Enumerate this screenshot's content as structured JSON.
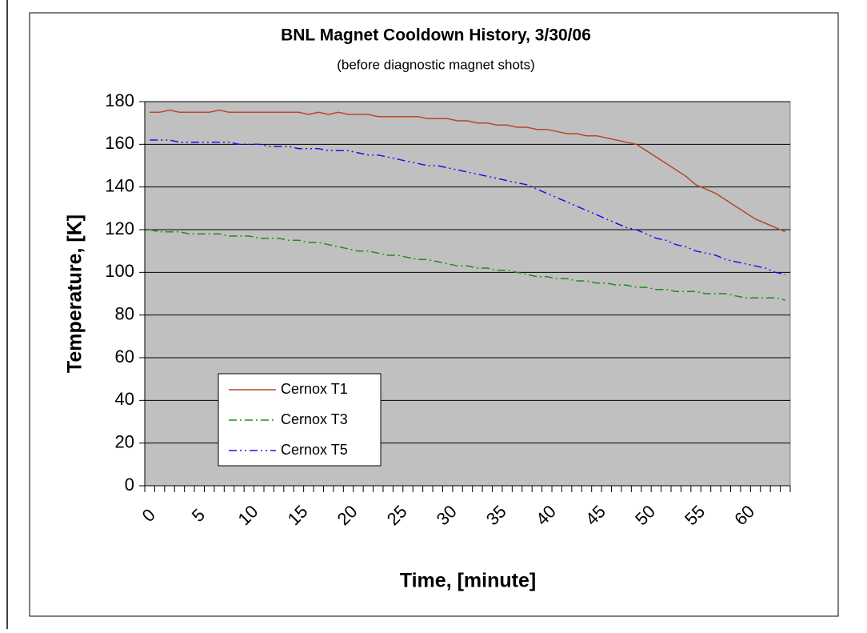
{
  "chart_data": {
    "type": "line",
    "title": "BNL Magnet Cooldown History, 3/30/06",
    "subtitle": "(before diagnostic magnet shots)",
    "x_label": "Time, [minute]",
    "y_label": "Temperature, [K]",
    "categories": [
      "0",
      null,
      null,
      null,
      null,
      "5",
      null,
      null,
      null,
      null,
      "10",
      null,
      null,
      null,
      null,
      "15",
      null,
      null,
      null,
      null,
      "20",
      null,
      null,
      null,
      null,
      "25",
      null,
      null,
      null,
      null,
      "30",
      null,
      null,
      null,
      null,
      "35",
      null,
      null,
      null,
      null,
      "40",
      null,
      null,
      null,
      null,
      "45",
      null,
      null,
      null,
      null,
      "50",
      null,
      null,
      null,
      null,
      "55",
      null,
      null,
      null,
      null,
      "60",
      null,
      null,
      null,
      null
    ],
    "series": [
      {
        "name": "Cernox T1",
        "color": "#b5472a",
        "line_style": "solid",
        "values": [
          175,
          175,
          176,
          175,
          175,
          175,
          175,
          176,
          175,
          175,
          175,
          175,
          175,
          175,
          175,
          175,
          174,
          175,
          174,
          175,
          174,
          174,
          174,
          173,
          173,
          173,
          173,
          173,
          172,
          172,
          172,
          171,
          171,
          170,
          170,
          169,
          169,
          168,
          168,
          167,
          167,
          166,
          165,
          165,
          164,
          164,
          163,
          162,
          161,
          160,
          157,
          154,
          151,
          148,
          145,
          141,
          139,
          137,
          134,
          131,
          128,
          125,
          123,
          121,
          119
        ]
      },
      {
        "name": "Cernox T3",
        "color": "#1e8c1e",
        "line_style": "dash-dot",
        "values": [
          120,
          119,
          119,
          119,
          118,
          118,
          118,
          118,
          117,
          117,
          117,
          116,
          116,
          116,
          115,
          115,
          114,
          114,
          113,
          112,
          111,
          110,
          110,
          109,
          108,
          108,
          107,
          106,
          106,
          105,
          104,
          103,
          103,
          102,
          102,
          101,
          101,
          100,
          99,
          98,
          98,
          97,
          97,
          96,
          96,
          95,
          95,
          94,
          94,
          93,
          93,
          92,
          92,
          91,
          91,
          91,
          90,
          90,
          90,
          89,
          88,
          88,
          88,
          88,
          87
        ]
      },
      {
        "name": "Cernox T5",
        "color": "#1414f0",
        "line_style": "dash-dot-dot",
        "values": [
          162,
          162,
          162,
          161,
          161,
          161,
          161,
          161,
          161,
          160,
          160,
          160,
          159,
          159,
          159,
          158,
          158,
          158,
          157,
          157,
          157,
          156,
          155,
          155,
          154,
          153,
          152,
          151,
          150,
          150,
          149,
          148,
          147,
          146,
          145,
          144,
          143,
          142,
          141,
          139,
          137,
          135,
          133,
          131,
          129,
          127,
          125,
          123,
          121,
          120,
          118,
          116,
          115,
          113,
          112,
          110,
          109,
          108,
          106,
          105,
          104,
          103,
          102,
          100,
          99
        ]
      }
    ],
    "ylim": [
      0,
      180
    ],
    "yticks": [
      0,
      20,
      40,
      60,
      80,
      100,
      120,
      140,
      160,
      180
    ],
    "grid": true,
    "plot_background": "#c0c0c0",
    "legend": "lower left"
  }
}
